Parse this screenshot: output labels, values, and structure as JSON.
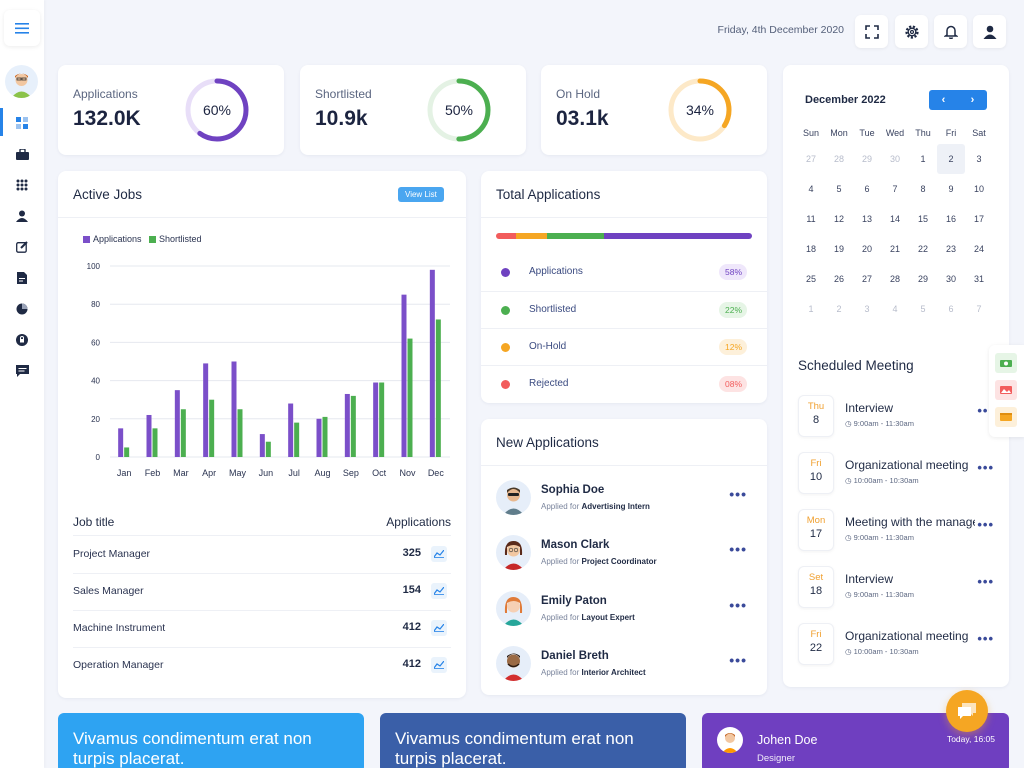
{
  "header": {
    "date": "Friday, 4th December 2020"
  },
  "stats": [
    {
      "label": "Applications",
      "value": "132.0K",
      "percent": 60,
      "percent_label": "60%",
      "color": "#6f42c1",
      "track": "#e8def8"
    },
    {
      "label": "Shortlisted",
      "value": "10.9k",
      "percent": 50,
      "percent_label": "50%",
      "color": "#4caf50",
      "track": "#e4f2e4"
    },
    {
      "label": "On Hold",
      "value": "03.1k",
      "percent": 34,
      "percent_label": "34%",
      "color": "#f5a623",
      "track": "#fde9c8"
    }
  ],
  "active_jobs": {
    "title": "Active Jobs",
    "view_list_label": "View List",
    "table_header": {
      "job": "Job title",
      "apps": "Applications"
    },
    "rows": [
      {
        "title": "Project Manager",
        "count": "325"
      },
      {
        "title": "Sales Manager",
        "count": "154"
      },
      {
        "title": "Machine Instrument",
        "count": "412"
      },
      {
        "title": "Operation Manager",
        "count": "412"
      }
    ]
  },
  "chart_data": {
    "type": "bar",
    "title": "",
    "categories": [
      "Jan",
      "Feb",
      "Mar",
      "Apr",
      "May",
      "Jun",
      "Jul",
      "Aug",
      "Sep",
      "Oct",
      "Nov",
      "Dec"
    ],
    "series": [
      {
        "name": "Applications",
        "color": "#7b4fc9",
        "values": [
          15,
          22,
          35,
          49,
          50,
          12,
          28,
          20,
          33,
          39,
          85,
          98
        ]
      },
      {
        "name": "Shortlisted",
        "color": "#4caf50",
        "values": [
          5,
          15,
          25,
          30,
          25,
          8,
          18,
          21,
          32,
          39,
          62,
          72
        ]
      }
    ],
    "yticks": [
      "0",
      "20",
      "40",
      "60",
      "80",
      "100"
    ],
    "ylim": [
      0,
      100
    ],
    "xlabel": "",
    "ylabel": ""
  },
  "total_applications": {
    "title": "Total Applications",
    "segments": [
      {
        "label": "Rejected",
        "share": 8,
        "color": "#f25c5c"
      },
      {
        "label": "On-Hold",
        "share": 12,
        "color": "#f5a623"
      },
      {
        "label": "Shortlisted",
        "share": 22,
        "color": "#4caf50"
      },
      {
        "label": "Applications",
        "share": 58,
        "color": "#6f42c1"
      }
    ],
    "items": [
      {
        "label": "Applications",
        "pct": "58%",
        "dot": "#6f42c1",
        "bg": "#efe7fb",
        "fg": "#6f42c1"
      },
      {
        "label": "Shortlisted",
        "pct": "22%",
        "dot": "#4caf50",
        "bg": "#e6f5e6",
        "fg": "#4caf50"
      },
      {
        "label": "On-Hold",
        "pct": "12%",
        "dot": "#f5a623",
        "bg": "#fdf0da",
        "fg": "#f5a623"
      },
      {
        "label": "Rejected",
        "pct": "08%",
        "dot": "#f25c5c",
        "bg": "#fde3e3",
        "fg": "#f25c5c"
      }
    ]
  },
  "new_applications": {
    "title": "New Applications",
    "applied_prefix": "Applied for",
    "items": [
      {
        "name": "Sophia Doe",
        "role": "Advertising Intern"
      },
      {
        "name": "Mason Clark",
        "role": "Project Coordinator"
      },
      {
        "name": "Emily Paton",
        "role": "Layout Expert"
      },
      {
        "name": "Daniel Breth",
        "role": "Interior Architect"
      }
    ]
  },
  "calendar": {
    "month": "December 2022",
    "weekdays": [
      "Sun",
      "Mon",
      "Tue",
      "Wed",
      "Thu",
      "Fri",
      "Sat"
    ],
    "weeks": [
      [
        "27",
        "28",
        "29",
        "30",
        "1",
        "2",
        "3"
      ],
      [
        "4",
        "5",
        "6",
        "7",
        "8",
        "9",
        "10"
      ],
      [
        "11",
        "12",
        "13",
        "14",
        "15",
        "16",
        "17"
      ],
      [
        "18",
        "19",
        "20",
        "21",
        "22",
        "23",
        "24"
      ],
      [
        "25",
        "26",
        "27",
        "28",
        "29",
        "30",
        "31"
      ],
      [
        "1",
        "2",
        "3",
        "4",
        "5",
        "6",
        "7"
      ]
    ],
    "selected": "2"
  },
  "meetings": {
    "title": "Scheduled Meeting",
    "items": [
      {
        "day": "Thu",
        "date": "8",
        "title": "Interview",
        "time": "9:00am - 11:30am"
      },
      {
        "day": "Fri",
        "date": "10",
        "title": "Organizational meeting",
        "time": "10:00am - 10:30am"
      },
      {
        "day": "Mon",
        "date": "17",
        "title": "Meeting with the manager",
        "time": "9:00am - 11:30am"
      },
      {
        "day": "Set",
        "date": "18",
        "title": "Interview",
        "time": "9:00am - 11:30am"
      },
      {
        "day": "Fri",
        "date": "22",
        "title": "Organizational meeting",
        "time": "10:00am - 10:30am"
      }
    ]
  },
  "banners": [
    {
      "text": "Vivamus condimentum erat non turpis placerat.",
      "color": "#2ea3f2"
    },
    {
      "text": "Vivamus condimentum erat non turpis placerat.",
      "color": "#3a5fa8"
    }
  ],
  "profile": {
    "name": "Johen Doe",
    "role": "Designer",
    "time": "Today, 16:05",
    "color": "#6f3fc0"
  }
}
